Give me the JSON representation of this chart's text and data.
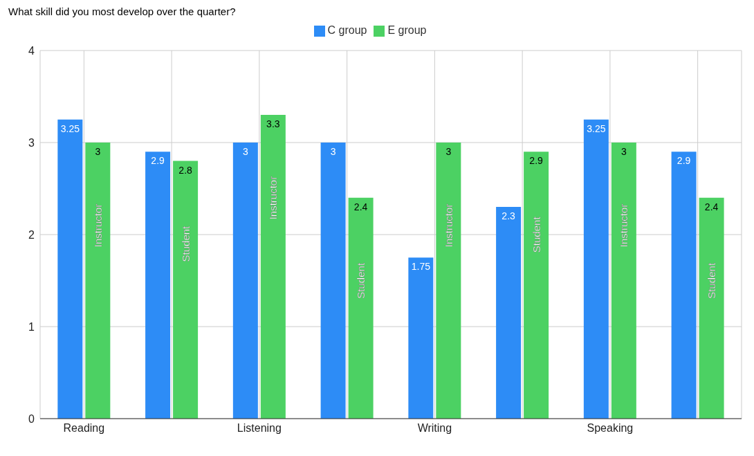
{
  "chart_data": {
    "type": "bar",
    "title": "What skill did you most develop over the quarter?",
    "categories": [
      "Reading",
      null,
      "Listening",
      null,
      "Writing",
      null,
      "Speaking",
      null
    ],
    "series": [
      {
        "name": "C group",
        "color": "#2d8cf6",
        "values": [
          3.25,
          2.9,
          3,
          3,
          1.75,
          2.3,
          3.25,
          2.9
        ]
      },
      {
        "name": "E group",
        "color": "#4cd163",
        "values": [
          3,
          2.8,
          3.3,
          2.4,
          3,
          2.9,
          3,
          2.4
        ]
      }
    ],
    "annotations": [
      "Instructor",
      "Student",
      "Instructor",
      "Student",
      "Instructor",
      "Student",
      "Instructor",
      "Student"
    ],
    "ylim": [
      0,
      4
    ],
    "yticks": [
      0,
      1,
      2,
      3,
      4
    ],
    "grid": true,
    "legend": "top",
    "data_labels": true
  }
}
